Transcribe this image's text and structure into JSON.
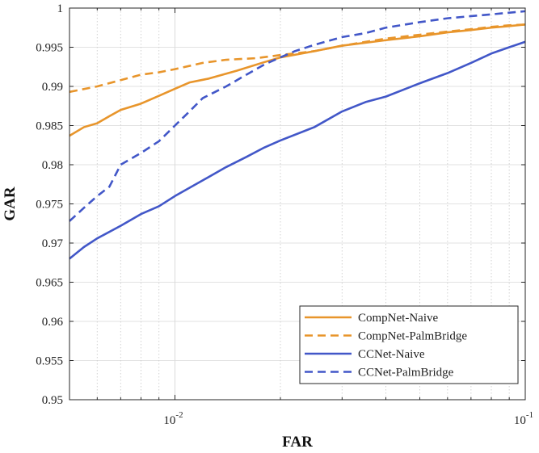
{
  "chart_data": {
    "type": "line",
    "title": "",
    "xlabel": "FAR",
    "ylabel": "GAR",
    "xscale": "log",
    "xlim": [
      0.005,
      0.1
    ],
    "ylim": [
      0.95,
      1.0
    ],
    "grid": true,
    "legend_position": "bottom-right",
    "x_ticks": [
      {
        "value": 0.01,
        "base": "10",
        "exp": "-2"
      },
      {
        "value": 0.1,
        "base": "10",
        "exp": "-1"
      }
    ],
    "y_ticks": [
      {
        "value": 0.95,
        "label": "0.95"
      },
      {
        "value": 0.955,
        "label": "0.955"
      },
      {
        "value": 0.96,
        "label": "0.96"
      },
      {
        "value": 0.965,
        "label": "0.965"
      },
      {
        "value": 0.97,
        "label": "0.97"
      },
      {
        "value": 0.975,
        "label": "0.975"
      },
      {
        "value": 0.98,
        "label": "0.98"
      },
      {
        "value": 0.985,
        "label": "0.985"
      },
      {
        "value": 0.99,
        "label": "0.99"
      },
      {
        "value": 0.995,
        "label": "0.995"
      },
      {
        "value": 1.0,
        "label": "1"
      }
    ],
    "series": [
      {
        "name": "CompNet-Naive",
        "color": "#E8952B",
        "dash": "solid",
        "points": [
          [
            0.005,
            0.9837
          ],
          [
            0.0055,
            0.9848
          ],
          [
            0.006,
            0.9853
          ],
          [
            0.0065,
            0.9862
          ],
          [
            0.007,
            0.987
          ],
          [
            0.008,
            0.9878
          ],
          [
            0.009,
            0.9888
          ],
          [
            0.01,
            0.9897
          ],
          [
            0.011,
            0.9905
          ],
          [
            0.0125,
            0.991
          ],
          [
            0.015,
            0.992
          ],
          [
            0.018,
            0.9931
          ],
          [
            0.02,
            0.9937
          ],
          [
            0.025,
            0.9945
          ],
          [
            0.03,
            0.9952
          ],
          [
            0.04,
            0.9959
          ],
          [
            0.05,
            0.9964
          ],
          [
            0.06,
            0.9969
          ],
          [
            0.07,
            0.9972
          ],
          [
            0.08,
            0.9975
          ],
          [
            0.09,
            0.9977
          ],
          [
            0.1,
            0.9979
          ]
        ]
      },
      {
        "name": "CompNet-PalmBridge",
        "color": "#E8952B",
        "dash": "dashed",
        "points": [
          [
            0.005,
            0.9893
          ],
          [
            0.006,
            0.99
          ],
          [
            0.007,
            0.9908
          ],
          [
            0.008,
            0.9915
          ],
          [
            0.009,
            0.9918
          ],
          [
            0.01,
            0.9922
          ],
          [
            0.012,
            0.993
          ],
          [
            0.014,
            0.9934
          ],
          [
            0.017,
            0.9936
          ],
          [
            0.02,
            0.994
          ],
          [
            0.025,
            0.9945
          ],
          [
            0.03,
            0.9952
          ],
          [
            0.04,
            0.9961
          ],
          [
            0.05,
            0.9966
          ],
          [
            0.06,
            0.997
          ],
          [
            0.07,
            0.9973
          ],
          [
            0.08,
            0.9976
          ],
          [
            0.09,
            0.9978
          ],
          [
            0.1,
            0.9979
          ]
        ]
      },
      {
        "name": "CCNet-Naive",
        "color": "#4257C8",
        "dash": "solid",
        "points": [
          [
            0.005,
            0.968
          ],
          [
            0.0055,
            0.9695
          ],
          [
            0.006,
            0.9706
          ],
          [
            0.007,
            0.9722
          ],
          [
            0.008,
            0.9737
          ],
          [
            0.009,
            0.9747
          ],
          [
            0.01,
            0.976
          ],
          [
            0.012,
            0.978
          ],
          [
            0.014,
            0.9797
          ],
          [
            0.016,
            0.981
          ],
          [
            0.018,
            0.9822
          ],
          [
            0.02,
            0.9831
          ],
          [
            0.025,
            0.9848
          ],
          [
            0.03,
            0.9868
          ],
          [
            0.035,
            0.988
          ],
          [
            0.04,
            0.9887
          ],
          [
            0.05,
            0.9904
          ],
          [
            0.06,
            0.9917
          ],
          [
            0.07,
            0.993
          ],
          [
            0.08,
            0.9942
          ],
          [
            0.09,
            0.995
          ],
          [
            0.1,
            0.9957
          ]
        ]
      },
      {
        "name": "CCNet-PalmBridge",
        "color": "#4257C8",
        "dash": "dashed",
        "points": [
          [
            0.005,
            0.9728
          ],
          [
            0.0055,
            0.9745
          ],
          [
            0.006,
            0.976
          ],
          [
            0.0065,
            0.9772
          ],
          [
            0.007,
            0.98
          ],
          [
            0.008,
            0.9815
          ],
          [
            0.009,
            0.983
          ],
          [
            0.01,
            0.985
          ],
          [
            0.011,
            0.9868
          ],
          [
            0.012,
            0.9885
          ],
          [
            0.014,
            0.99
          ],
          [
            0.016,
            0.9915
          ],
          [
            0.018,
            0.9928
          ],
          [
            0.02,
            0.9937
          ],
          [
            0.022,
            0.9945
          ],
          [
            0.025,
            0.9953
          ],
          [
            0.03,
            0.9963
          ],
          [
            0.035,
            0.9968
          ],
          [
            0.04,
            0.9975
          ],
          [
            0.05,
            0.9982
          ],
          [
            0.06,
            0.9987
          ],
          [
            0.08,
            0.9992
          ],
          [
            0.1,
            0.9996
          ]
        ]
      }
    ]
  }
}
